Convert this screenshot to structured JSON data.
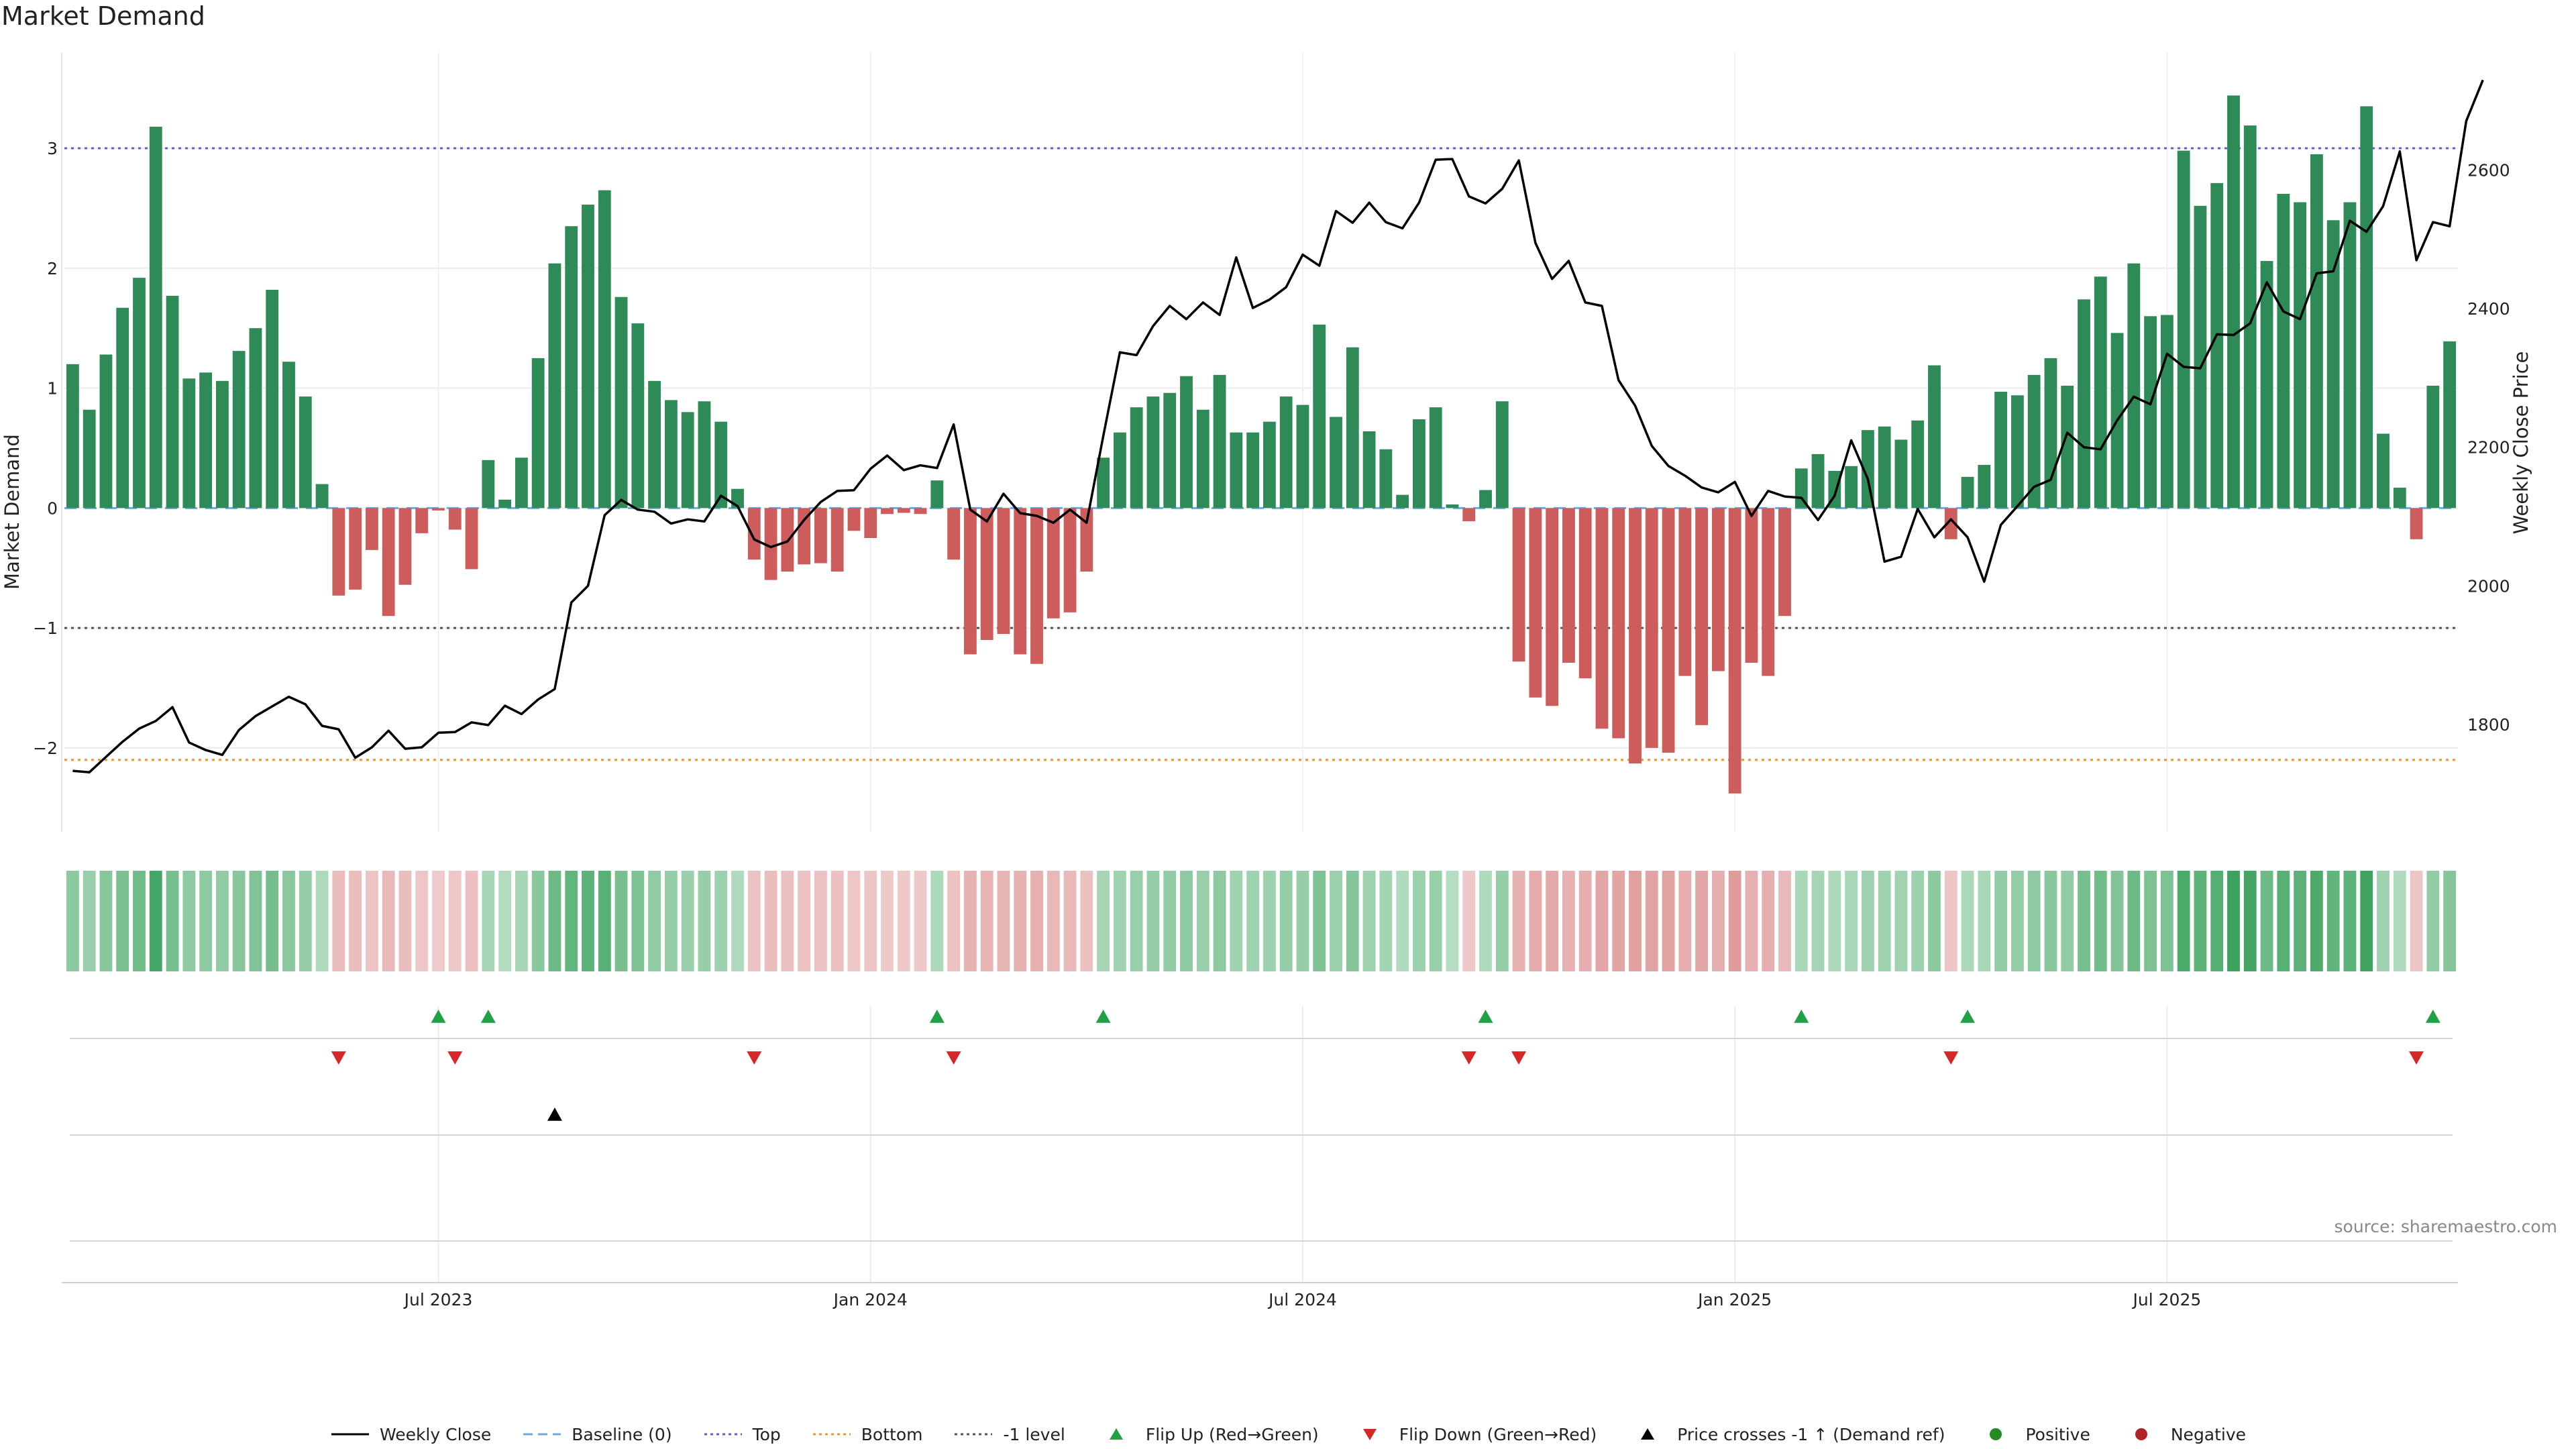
{
  "title": "Market Demand",
  "source": "source: sharemaestro.com",
  "colors": {
    "positive": "#2e8b57",
    "negative": "#cd5c5c",
    "price": "#000000",
    "top_line": "#6a5acd",
    "bottom_line": "#e69a28",
    "minus1_line": "#555555",
    "flip_up": "#22a046",
    "flip_down": "#d62728",
    "cross": "#000000",
    "pos_marker": "#228b22",
    "neg_marker": "#b22222"
  },
  "legend": [
    {
      "key": "weekly_close",
      "label": "Weekly Close",
      "icon": "solid-line-icon"
    },
    {
      "key": "baseline",
      "label": "Baseline (0)",
      "icon": "dashed-line-icon"
    },
    {
      "key": "top",
      "label": "Top",
      "icon": "dotted-line-icon"
    },
    {
      "key": "bottom",
      "label": "Bottom",
      "icon": "dotted-line-icon"
    },
    {
      "key": "minus1",
      "label": "-1 level",
      "icon": "dotted-line-icon"
    },
    {
      "key": "flip_up",
      "label": "Flip Up (Red→Green)",
      "icon": "triangle-up-icon"
    },
    {
      "key": "flip_down",
      "label": "Flip Down (Green→Red)",
      "icon": "triangle-down-icon"
    },
    {
      "key": "cross",
      "label": "Price crosses -1 ↑ (Demand ref)",
      "icon": "triangle-up-icon"
    },
    {
      "key": "positive",
      "label": "Positive",
      "icon": "circle-icon"
    },
    {
      "key": "negative",
      "label": "Negative",
      "icon": "circle-icon"
    }
  ],
  "chart_data": {
    "type": "bar",
    "title": "Market Demand",
    "ylabel": "Market Demand",
    "y2label": "Weekly Close Price",
    "ylim": [
      -2.7,
      3.8
    ],
    "y2lim": [
      1645,
      2770
    ],
    "yticks": [
      -2,
      -1,
      0,
      1,
      2,
      3
    ],
    "y2ticks": [
      1800,
      2000,
      2200,
      2400,
      2600
    ],
    "levels": {
      "top": 3.0,
      "bottom": -2.1,
      "minus1": -1.0,
      "baseline": 0
    },
    "x_tick_labels": [
      {
        "label": "Jul 2023",
        "week": 22
      },
      {
        "label": "Jan 2024",
        "week": 48
      },
      {
        "label": "Jul 2024",
        "week": 74
      },
      {
        "label": "Jan 2025",
        "week": 100
      },
      {
        "label": "Jul 2025",
        "week": 126
      }
    ],
    "series": [
      {
        "name": "Market Demand",
        "values": [
          1.2,
          0.82,
          1.28,
          1.67,
          1.92,
          3.18,
          1.77,
          1.08,
          1.13,
          1.06,
          1.31,
          1.5,
          1.82,
          1.22,
          0.93,
          0.2,
          -0.73,
          -0.68,
          -0.35,
          -0.9,
          -0.64,
          -0.21,
          -0.02,
          -0.18,
          -0.51,
          0.4,
          0.07,
          0.42,
          1.25,
          2.04,
          2.35,
          2.53,
          2.65,
          1.76,
          1.54,
          1.06,
          0.9,
          0.8,
          0.89,
          0.72,
          0.16,
          -0.43,
          -0.6,
          -0.53,
          -0.47,
          -0.46,
          -0.53,
          -0.19,
          -0.25,
          -0.05,
          -0.04,
          -0.05,
          0.23,
          -0.43,
          -1.22,
          -1.1,
          -1.05,
          -1.22,
          -1.3,
          -0.92,
          -0.87,
          -0.53,
          0.42,
          0.63,
          0.84,
          0.93,
          0.96,
          1.1,
          0.82,
          1.11,
          0.63,
          0.63,
          0.72,
          0.93,
          0.86,
          1.53,
          0.76,
          1.34,
          0.64,
          0.49,
          0.11,
          0.74,
          0.84,
          0.03,
          -0.11,
          0.15,
          0.89,
          -1.28,
          -1.58,
          -1.65,
          -1.29,
          -1.42,
          -1.84,
          -1.92,
          -2.13,
          -2.0,
          -2.04,
          -1.4,
          -1.81,
          -1.36,
          -2.38,
          -1.29,
          -1.4,
          -0.9,
          0.33,
          0.45,
          0.31,
          0.35,
          0.65,
          0.68,
          0.57,
          0.73,
          1.19,
          -0.26,
          0.26,
          0.36,
          0.97,
          0.94,
          1.11,
          1.25,
          1.02,
          1.74,
          1.93,
          1.46,
          2.04,
          1.6,
          1.61,
          2.98,
          2.52,
          2.71,
          3.44,
          3.19,
          2.06,
          2.62,
          2.55,
          2.95,
          2.4,
          2.55,
          3.35,
          0.62,
          0.17,
          -0.26,
          1.02,
          1.39
        ]
      },
      {
        "name": "Weekly Close",
        "values": [
          1733,
          1731,
          1753,
          1775,
          1794,
          1805,
          1825,
          1774,
          1763,
          1756,
          1792,
          1812,
          1826,
          1840,
          1829,
          1798,
          1793,
          1752,
          1767,
          1791,
          1765,
          1767,
          1788,
          1789,
          1803,
          1799,
          1827,
          1815,
          1836,
          1851,
          1976,
          2000,
          2102,
          2124,
          2110,
          2107,
          2090,
          2096,
          2093,
          2130,
          2115,
          2067,
          2056,
          2064,
          2095,
          2121,
          2137,
          2138,
          2169,
          2188,
          2167,
          2174,
          2170,
          2233,
          2110,
          2093,
          2133,
          2105,
          2101,
          2091,
          2110,
          2091,
          2216,
          2337,
          2333,
          2375,
          2404,
          2385,
          2409,
          2391,
          2474,
          2401,
          2413,
          2431,
          2478,
          2462,
          2541,
          2524,
          2553,
          2525,
          2516,
          2553,
          2615,
          2616,
          2562,
          2552,
          2573,
          2614,
          2495,
          2443,
          2469,
          2409,
          2404,
          2297,
          2260,
          2202,
          2173,
          2159,
          2142,
          2135,
          2150,
          2101,
          2137,
          2129,
          2127,
          2095,
          2130,
          2210,
          2154,
          2035,
          2042,
          2111,
          2070,
          2096,
          2070,
          2006,
          2088,
          2115,
          2143,
          2153,
          2221,
          2200,
          2197,
          2239,
          2273,
          2262,
          2335,
          2316,
          2314,
          2363,
          2362,
          2379,
          2438,
          2396,
          2385,
          2451,
          2454,
          2527,
          2511,
          2548,
          2627,
          2470,
          2525,
          2519,
          2671,
          2730
        ]
      }
    ],
    "heat_strip_note": "Daily-style strip: one cell per week, green shade by positive demand, red shade by negative demand",
    "flip_up_weeks": [
      22,
      25,
      52,
      62,
      85,
      104,
      114,
      142
    ],
    "flip_down_weeks": [
      16,
      23,
      41,
      53,
      84,
      87,
      113,
      141
    ],
    "price_cross_weeks": [
      29
    ]
  }
}
